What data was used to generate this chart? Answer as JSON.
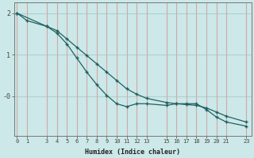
{
  "line1_x": [
    0,
    1,
    3,
    4,
    5,
    6,
    7,
    8,
    9,
    10,
    11,
    12,
    13,
    15,
    16,
    17,
    18,
    19,
    20,
    21,
    23
  ],
  "line1_y": [
    2.0,
    1.82,
    1.68,
    1.58,
    1.38,
    1.18,
    0.98,
    0.78,
    0.58,
    0.38,
    0.18,
    0.05,
    -0.05,
    -0.15,
    -0.18,
    -0.2,
    -0.22,
    -0.28,
    -0.38,
    -0.48,
    -0.62
  ],
  "line2_x": [
    0,
    3,
    4,
    5,
    6,
    7,
    8,
    9,
    10,
    11,
    12,
    13,
    15,
    16,
    17,
    18,
    19,
    20,
    21,
    23
  ],
  "line2_y": [
    2.0,
    1.68,
    1.52,
    1.26,
    0.92,
    0.58,
    0.28,
    0.02,
    -0.18,
    -0.25,
    -0.18,
    -0.18,
    -0.22,
    -0.18,
    -0.18,
    -0.18,
    -0.32,
    -0.5,
    -0.62,
    -0.72
  ],
  "line_color": "#206060",
  "background_color": "#cce8e8",
  "grid_hcolor": "#b0d0d0",
  "vline_color": "#d0a8a8",
  "xlabel": "Humidex (Indice chaleur)",
  "ytick_labels": [
    "2",
    "1",
    "-0"
  ],
  "ytick_vals": [
    2,
    1,
    0
  ],
  "xticks": [
    0,
    1,
    3,
    4,
    5,
    6,
    7,
    8,
    9,
    10,
    11,
    12,
    13,
    15,
    16,
    17,
    18,
    19,
    20,
    21,
    23
  ],
  "ylim": [
    -0.95,
    2.25
  ],
  "xlim": [
    -0.3,
    23.5
  ]
}
